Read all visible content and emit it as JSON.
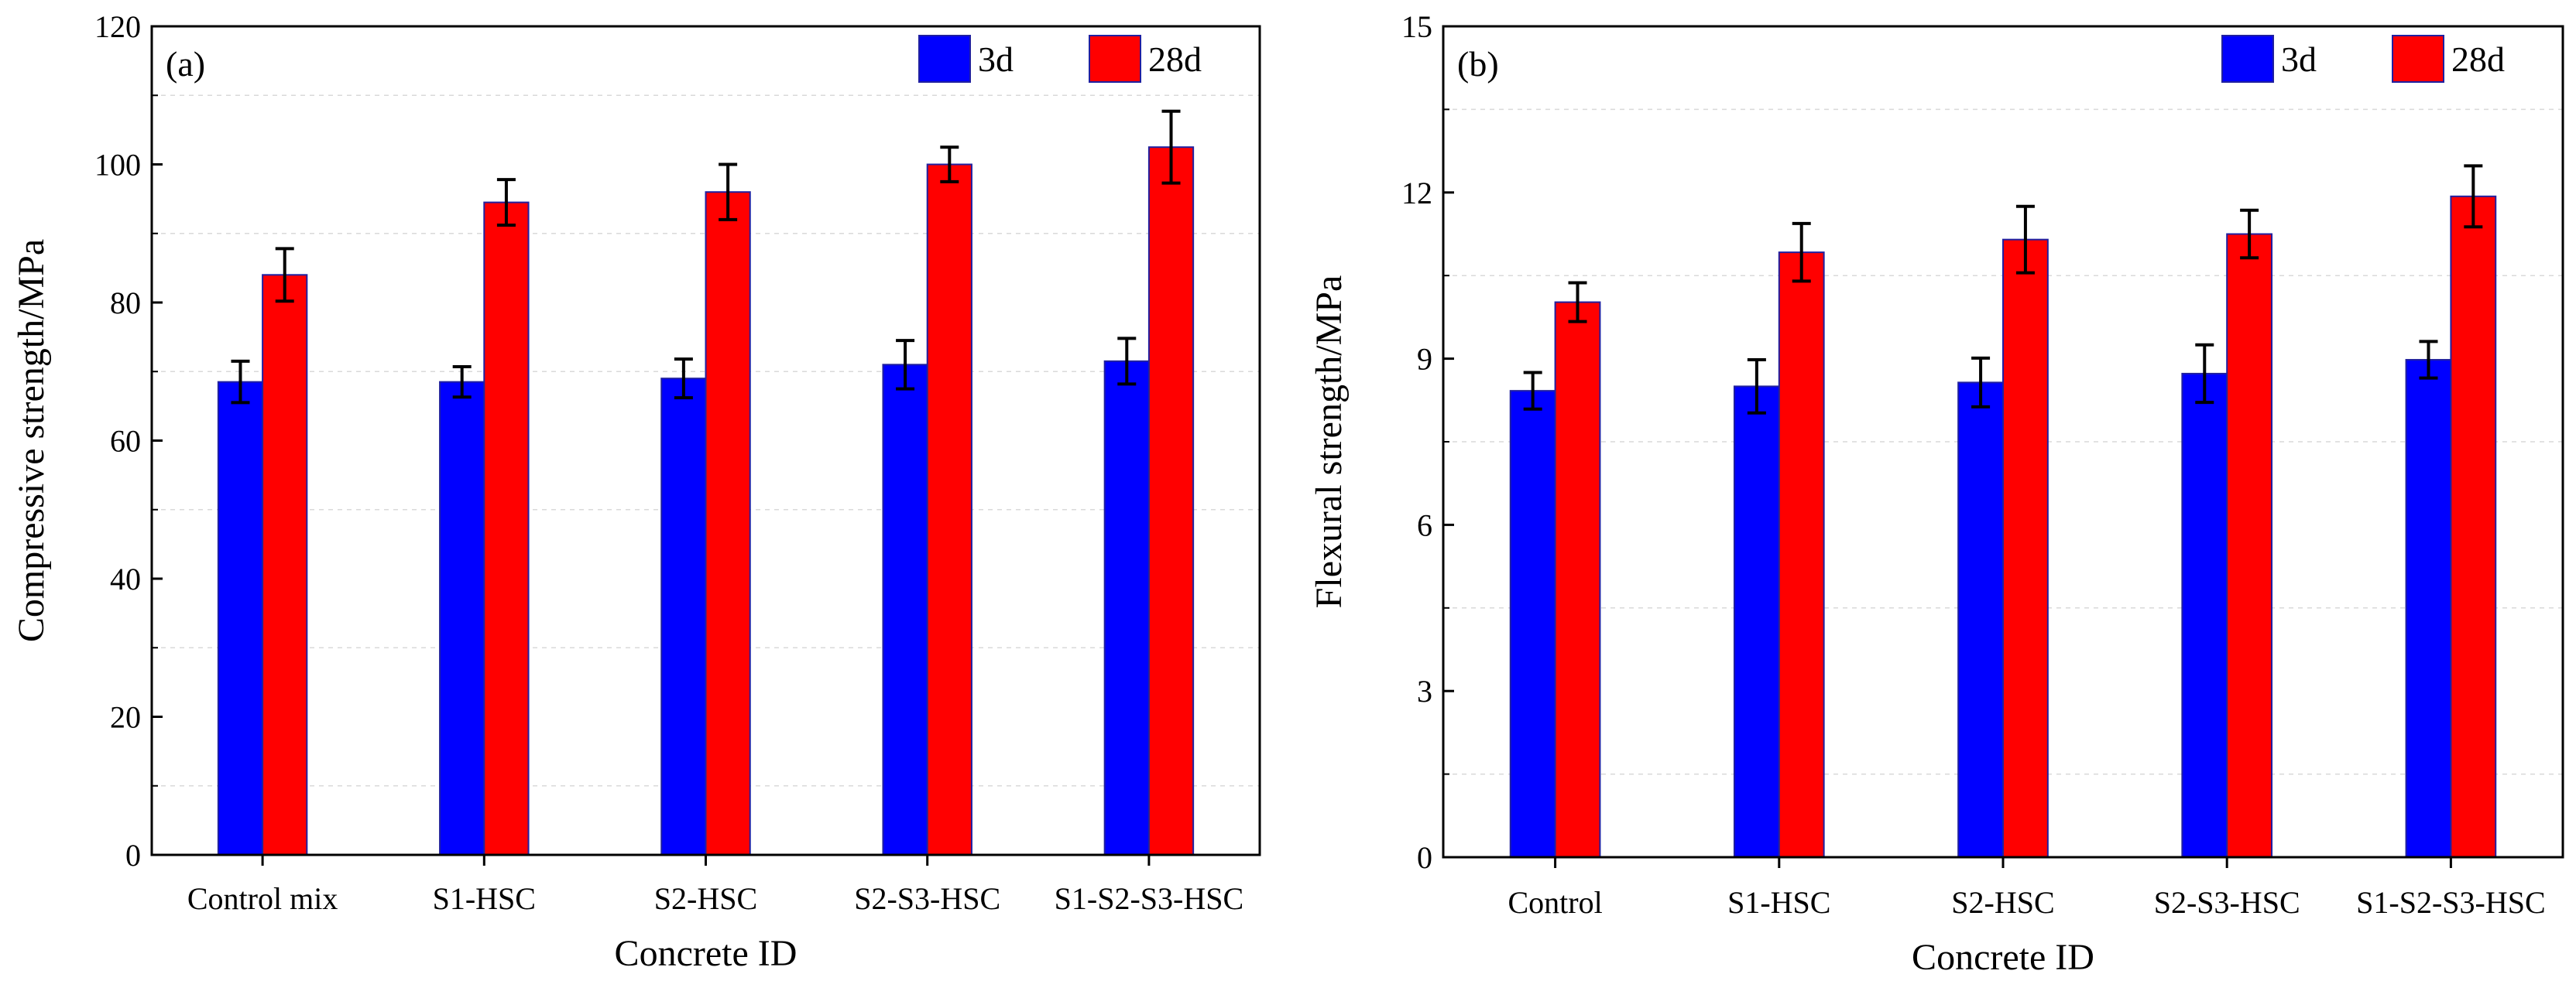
{
  "figure": {
    "panels": [
      {
        "tag": "(a)"
      },
      {
        "tag": "(b)"
      }
    ]
  },
  "colors": {
    "series_3d": "#0000ff",
    "series_28d": "#ff0000",
    "bar_edge": "#2020a0",
    "error_bar": "#000000",
    "grid": "#d9d9d9"
  },
  "chart_data": [
    {
      "type": "bar",
      "panel_tag": "(a)",
      "title": "",
      "xlabel": "Concrete ID",
      "ylabel": "Compressive strength/MPa",
      "categories": [
        "Control mix",
        "S1-HSC",
        "S2-HSC",
        "S2-S3-HSC",
        "S1-S2-S3-HSC"
      ],
      "ylim": [
        0,
        120
      ],
      "yticks": [
        0,
        20,
        40,
        60,
        80,
        100,
        120
      ],
      "grid": "horizontal dashed minor",
      "legend_position": "top-right",
      "series": [
        {
          "name": "3d",
          "values": [
            68.5,
            68.5,
            69.0,
            71.0,
            71.5
          ],
          "errors": [
            3.0,
            2.2,
            2.8,
            3.5,
            3.3
          ]
        },
        {
          "name": "28d",
          "values": [
            84.0,
            94.5,
            96.0,
            100.0,
            102.5
          ],
          "errors": [
            3.8,
            3.3,
            4.0,
            2.5,
            5.2
          ]
        }
      ]
    },
    {
      "type": "bar",
      "panel_tag": "(b)",
      "title": "",
      "xlabel": "Concrete ID",
      "ylabel": "Flexural strength/MPa",
      "categories": [
        "Control",
        "S1-HSC",
        "S2-HSC",
        "S2-S3-HSC",
        "S1-S2-S3-HSC"
      ],
      "ylim": [
        0,
        15
      ],
      "yticks": [
        0,
        3,
        6,
        9,
        12,
        15
      ],
      "grid": "horizontal dashed minor",
      "legend_position": "top-right",
      "series": [
        {
          "name": "3d",
          "values": [
            8.42,
            8.5,
            8.57,
            8.73,
            8.98
          ],
          "errors": [
            0.33,
            0.48,
            0.44,
            0.52,
            0.33
          ]
        },
        {
          "name": "28d",
          "values": [
            10.02,
            10.92,
            11.15,
            11.25,
            11.93
          ],
          "errors": [
            0.35,
            0.52,
            0.6,
            0.43,
            0.55
          ]
        }
      ]
    }
  ]
}
